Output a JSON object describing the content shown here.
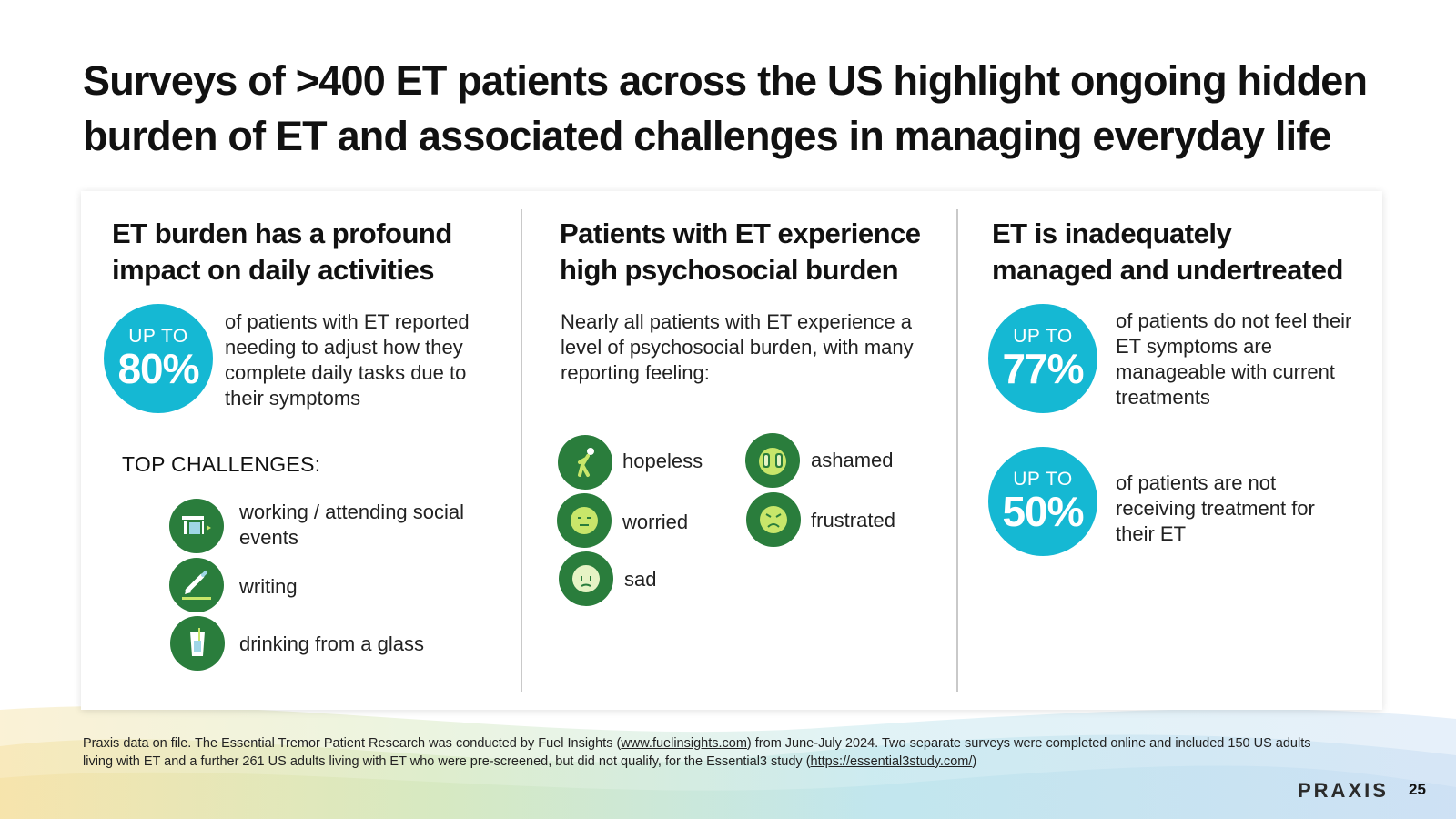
{
  "slide": {
    "title": "Surveys of >400 ET patients across the US highlight ongoing hidden burden of ET and associated challenges in managing everyday life",
    "page_number": "25",
    "logo_text": "PRAXIS"
  },
  "col1": {
    "title": "ET burden has a profound impact on daily activities",
    "stat": {
      "prefix": "UP TO",
      "value": "80%",
      "text": "of patients with ET reported needing to adjust how they complete daily tasks due to their symptoms"
    },
    "challenges_heading": "TOP CHALLENGES:",
    "challenges": [
      {
        "label": "working / attending social events",
        "icon": "office-door-icon"
      },
      {
        "label": "writing",
        "icon": "pen-icon"
      },
      {
        "label": "drinking from a glass",
        "icon": "glass-icon"
      }
    ]
  },
  "col2": {
    "title": "Patients with ET experience high psychosocial burden",
    "intro": "Nearly all patients with ET experience a level of psychosocial burden, with many reporting feeling:",
    "feelings": [
      {
        "label": "hopeless",
        "icon": "stooped-person-icon"
      },
      {
        "label": "ashamed",
        "icon": "hands-over-face-icon"
      },
      {
        "label": "worried",
        "icon": "worried-face-icon"
      },
      {
        "label": "frustrated",
        "icon": "frustrated-face-icon"
      },
      {
        "label": "sad",
        "icon": "sad-face-icon"
      }
    ]
  },
  "col3": {
    "title": "ET is inadequately managed and undertreated",
    "stats": [
      {
        "prefix": "UP TO",
        "value": "77%",
        "text": "of patients do not feel their ET symptoms are manageable with current treatments"
      },
      {
        "prefix": "UP TO",
        "value": "50%",
        "text": "of patients are not receiving treatment for their ET"
      }
    ]
  },
  "footnote": {
    "part1": "Praxis data on file. The Essential Tremor Patient Research was conducted by Fuel Insights (",
    "link1": "www.fuelinsights.com",
    "part2": ") from June-July 2024. Two separate surveys were completed online and included 150 US adults living with ET and a further 261 US adults living with ET who were pre-screened, but did not qualify, for the Essential3 study (",
    "link2": "https://essential3study.com/",
    "part3": ")"
  },
  "colors": {
    "accent_cyan": "#15b8d3",
    "icon_green": "#2a7d3c"
  }
}
